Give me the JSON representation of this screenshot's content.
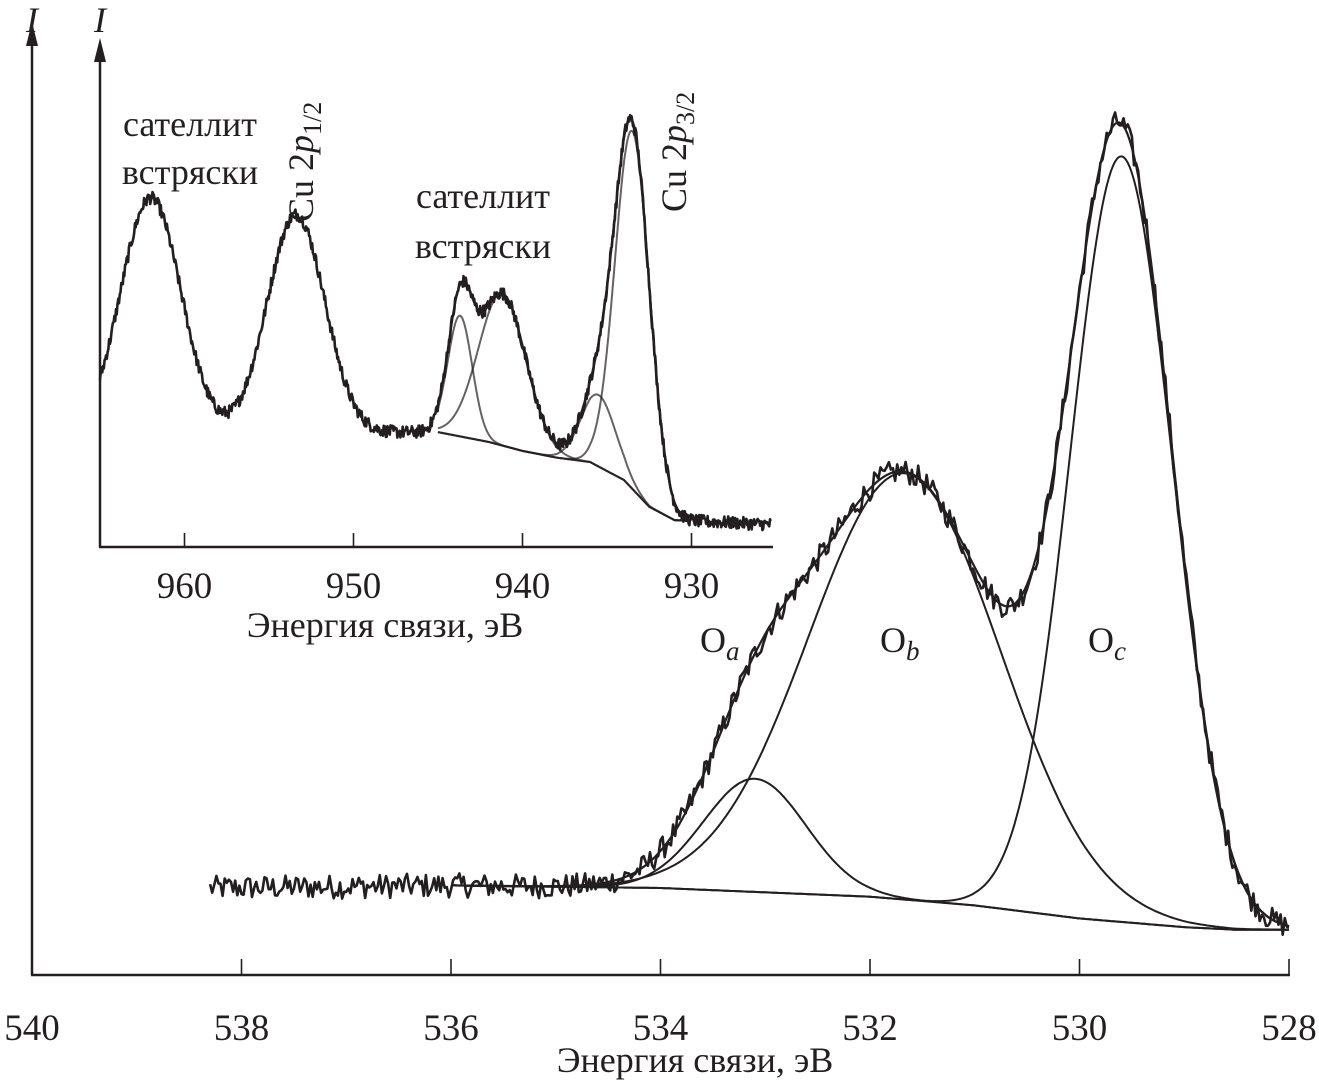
{
  "chart_data": [
    {
      "type": "line",
      "panel": "main",
      "title": "",
      "xlabel": "Энергия связи, эВ",
      "ylabel": "I",
      "xlim": [
        540,
        528
      ],
      "x_reversed": true,
      "xticks": [
        "540",
        "538",
        "536",
        "534",
        "532",
        "530",
        "528"
      ],
      "y_units": "arbitrary (relative intensity)",
      "grid": false,
      "data_range": [
        538.3,
        528
      ],
      "fit_range": [
        536,
        528
      ],
      "background": [
        [
          538.3,
          0.1
        ],
        [
          536,
          0.103
        ],
        [
          534,
          0.1
        ],
        [
          532,
          0.09
        ],
        [
          531,
          0.08
        ],
        [
          530,
          0.065
        ],
        [
          529,
          0.055
        ],
        [
          528.5,
          0.052
        ],
        [
          528,
          0.052
        ]
      ],
      "components": [
        {
          "label": "O",
          "sub": "a",
          "center": 533.1,
          "height": 0.13,
          "fwhm": 1.15
        },
        {
          "label": "O",
          "sub": "b",
          "center": 531.67,
          "height": 0.49,
          "fwhm": 2.15
        },
        {
          "label": "O",
          "sub": "c",
          "center": 529.6,
          "height": 0.88,
          "fwhm": 1.15
        }
      ],
      "color": "#231f20"
    },
    {
      "type": "line",
      "panel": "inset",
      "title": "",
      "xlabel": "Энергия связи, эВ",
      "ylabel": "I",
      "xlim": [
        965,
        925
      ],
      "x_reversed": true,
      "xticks": [
        "960",
        "950",
        "940",
        "930"
      ],
      "y_units": "arbitrary (relative intensity)",
      "grid": false,
      "data_range": [
        965,
        925.3
      ],
      "fit_range": [
        945,
        930.5
      ],
      "background": [
        [
          965,
          0.25
        ],
        [
          945,
          0.257
        ],
        [
          942,
          0.235
        ],
        [
          940,
          0.215
        ],
        [
          938,
          0.2
        ],
        [
          936,
          0.19
        ],
        [
          934,
          0.15
        ],
        [
          932.5,
          0.09
        ],
        [
          931,
          0.06
        ],
        [
          925,
          0.05
        ]
      ],
      "data_peaks": [
        {
          "center": 962.0,
          "height": 0.53,
          "fwhm": 4.2
        },
        {
          "center": 953.4,
          "height": 0.49,
          "fwhm": 4.0
        }
      ],
      "components": [
        {
          "center": 943.7,
          "height": 0.27,
          "fwhm": 1.7
        },
        {
          "center": 941.2,
          "height": 0.34,
          "fwhm": 3.3
        },
        {
          "center": 935.5,
          "height": 0.16,
          "fwhm": 2.4
        },
        {
          "center": 933.5,
          "height": 0.8,
          "fwhm": 2.4
        }
      ],
      "color": "#231f20"
    }
  ],
  "labels": {
    "main_y": "I",
    "inset_y": "I",
    "main_xlabel": "Энергия связи, эВ",
    "inset_xlabel": "Энергия связи, эВ",
    "satellite1_line1": "сателлит",
    "satellite1_line2": "встряски",
    "satellite2_line1": "сателлит",
    "satellite2_line2": "встряски",
    "cu12_main": "Cu 2",
    "cu12_p": "p",
    "cu12_sub": "1/2",
    "cu32_main": "Cu 2",
    "cu32_p": "p",
    "cu32_sub": "3/2",
    "oa": "O",
    "oa_sub": "a",
    "ob": "O",
    "ob_sub": "b",
    "oc": "O",
    "oc_sub": "c"
  }
}
